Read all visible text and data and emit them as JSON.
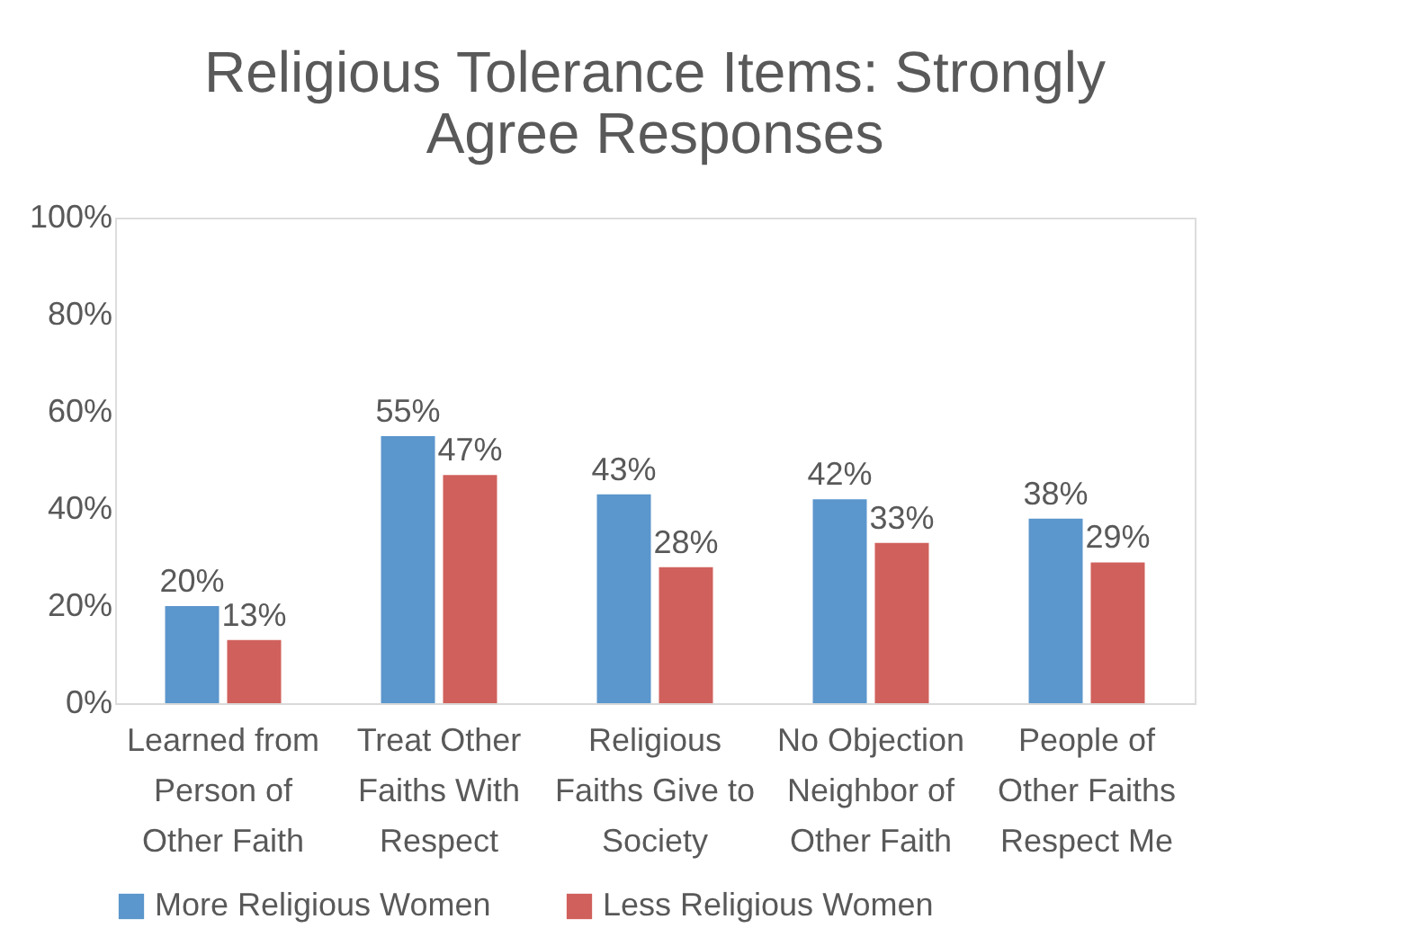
{
  "chart_data": {
    "type": "bar",
    "title": "Religious Tolerance Items: Strongly Agree Responses",
    "categories": [
      "Learned from Person of Other Faith",
      "Treat Other Faiths With Respect",
      "Religious Faiths Give to Society",
      "No Objection Neighbor of Other Faith",
      "People of Other Faiths Respect Me"
    ],
    "series": [
      {
        "name": "More Religious Women",
        "color": "#5b96cc",
        "values": [
          20,
          55,
          43,
          42,
          38
        ],
        "value_labels": [
          "20%",
          "55%",
          "43%",
          "42%",
          "38%"
        ]
      },
      {
        "name": "Less Religious Women",
        "color": "#d0605c",
        "values": [
          13,
          47,
          28,
          33,
          29
        ],
        "value_labels": [
          "13%",
          "47%",
          "28%",
          "33%",
          "29%"
        ]
      }
    ],
    "ylim": [
      0,
      100
    ],
    "yticks": [
      {
        "value": 0,
        "label": "0%"
      },
      {
        "value": 20,
        "label": "20%"
      },
      {
        "value": 40,
        "label": "40%"
      },
      {
        "value": 60,
        "label": "60%"
      },
      {
        "value": 80,
        "label": "80%"
      },
      {
        "value": 100,
        "label": "100%"
      }
    ],
    "grid": false,
    "legend": "bottom"
  }
}
